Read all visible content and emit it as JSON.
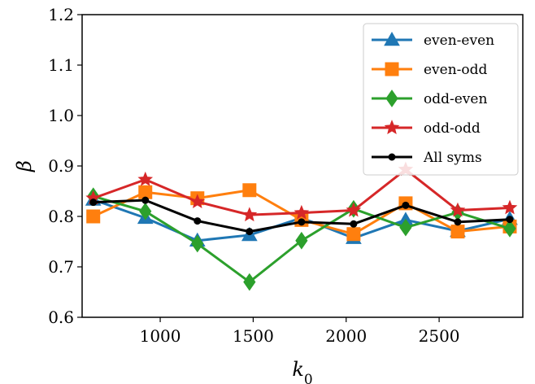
{
  "chart_data": {
    "type": "line",
    "xlabel": "k0",
    "ylabel": "β",
    "xlim": [
      580,
      2950
    ],
    "ylim": [
      0.6,
      1.2
    ],
    "xticks": [
      1000,
      1500,
      2000,
      2500
    ],
    "yticks": [
      0.6,
      0.7,
      0.8,
      0.9,
      1.0,
      1.1,
      1.2
    ],
    "xtick_labels": [
      "1000",
      "1500",
      "2000",
      "2500"
    ],
    "ytick_labels": [
      "0.6",
      "0.7",
      "0.8",
      "0.9",
      "1.0",
      "1.1",
      "1.2"
    ],
    "grid": false,
    "legend_position": "top-right",
    "x": [
      640,
      920,
      1200,
      1480,
      1760,
      2040,
      2320,
      2600,
      2880
    ],
    "series": [
      {
        "name": "even-even",
        "color": "#1f77b4",
        "marker": "triangle",
        "values": [
          0.833,
          0.797,
          0.752,
          0.763,
          0.797,
          0.757,
          0.793,
          0.771,
          0.795
        ]
      },
      {
        "name": "even-odd",
        "color": "#ff7f0e",
        "marker": "square",
        "values": [
          0.8,
          0.848,
          0.836,
          0.852,
          0.793,
          0.765,
          0.826,
          0.77,
          0.78
        ]
      },
      {
        "name": "odd-even",
        "color": "#2ca02c",
        "marker": "diamond",
        "values": [
          0.84,
          0.81,
          0.746,
          0.67,
          0.752,
          0.815,
          0.778,
          0.808,
          0.776
        ]
      },
      {
        "name": "odd-odd",
        "color": "#d62728",
        "marker": "star",
        "values": [
          0.836,
          0.873,
          0.829,
          0.803,
          0.807,
          0.812,
          0.893,
          0.812,
          0.817
        ]
      },
      {
        "name": "All syms",
        "color": "#000000",
        "marker": "dot",
        "values": [
          0.828,
          0.832,
          0.791,
          0.77,
          0.789,
          0.785,
          0.822,
          0.789,
          0.794
        ]
      }
    ]
  }
}
